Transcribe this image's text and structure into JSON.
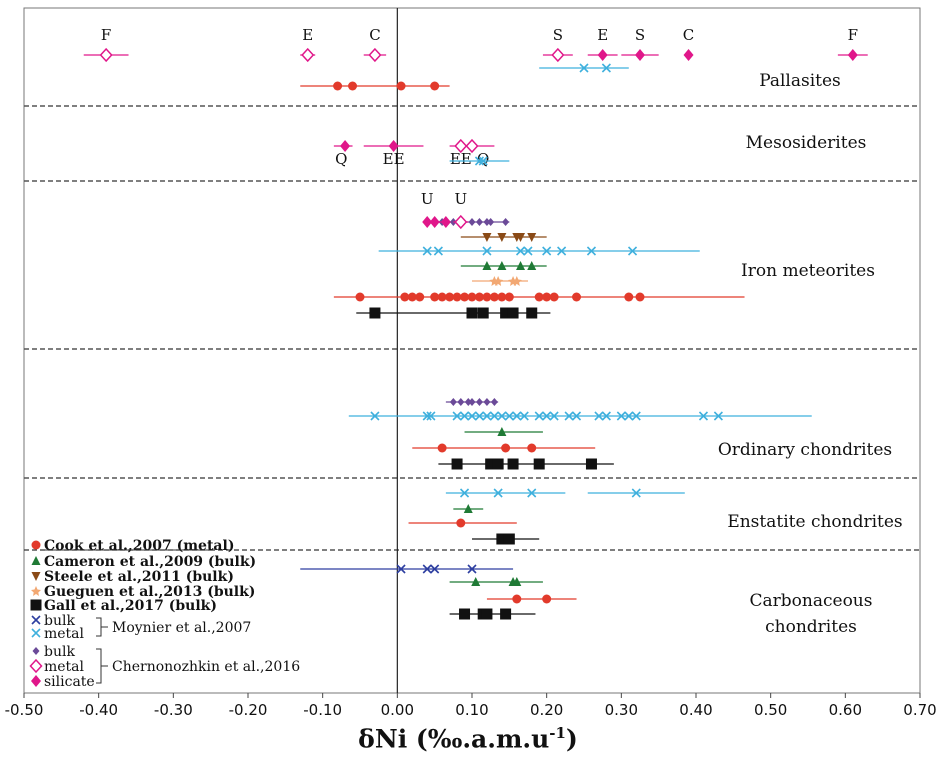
{
  "chart_data": {
    "type": "scatter",
    "xlabel": "δNi (‰.a.m.u",
    "xlabel_sup": "-1",
    "xlabel_end": ")",
    "xlim": [
      -0.5,
      0.7
    ],
    "xticks": [
      "-0.50",
      "-0.40",
      "-0.30",
      "-0.20",
      "-0.10",
      "0.00",
      "0.10",
      "0.20",
      "0.30",
      "0.40",
      "0.50",
      "0.60",
      "0.70"
    ],
    "grid": false,
    "sections": [
      {
        "label": "Pallasites"
      },
      {
        "label": "Mesosiderites"
      },
      {
        "label": "Iron meteorites"
      },
      {
        "label": "Ordinary chondrites"
      },
      {
        "label": "Enstatite chondrites"
      },
      {
        "label": "Carbonaceous",
        "label2": "chondrites"
      }
    ],
    "point_labels": [
      {
        "text": "F",
        "x": -0.39,
        "row": 1
      },
      {
        "text": "E",
        "x": -0.12,
        "row": 1
      },
      {
        "text": "C",
        "x": -0.03,
        "row": 1
      },
      {
        "text": "S",
        "x": 0.215,
        "row": 1
      },
      {
        "text": "E",
        "x": 0.275,
        "row": 1
      },
      {
        "text": "S",
        "x": 0.325,
        "row": 1
      },
      {
        "text": "C",
        "x": 0.39,
        "row": 1
      },
      {
        "text": "F",
        "x": 0.61,
        "row": 1
      },
      {
        "text": "Q",
        "x": -0.075,
        "row": 2
      },
      {
        "text": "EE",
        "x": -0.005,
        "row": 2
      },
      {
        "text": "EE",
        "x": 0.085,
        "row": 2
      },
      {
        "text": "Q",
        "x": 0.115,
        "row": 2
      },
      {
        "text": "U",
        "x": 0.04,
        "row": 3
      },
      {
        "text": "U",
        "x": 0.085,
        "row": 3
      }
    ],
    "series": [
      {
        "name": "Cook et al.,2007 (metal)",
        "marker": "circle",
        "color": "#e23a2b",
        "rows": [
          {
            "y": "pal",
            "xmin": -0.13,
            "xmax": 0.07,
            "x": [
              -0.08,
              -0.06,
              0.005,
              0.05
            ]
          },
          {
            "y": "iron",
            "xmin": -0.085,
            "xmax": 0.465,
            "x": [
              -0.05,
              0.01,
              0.02,
              0.03,
              0.05,
              0.06,
              0.07,
              0.08,
              0.09,
              0.1,
              0.11,
              0.12,
              0.13,
              0.14,
              0.15,
              0.19,
              0.2,
              0.21,
              0.24,
              0.31,
              0.325
            ]
          },
          {
            "y": "oc",
            "xmin": 0.02,
            "xmax": 0.265,
            "x": [
              0.06,
              0.145,
              0.18
            ]
          },
          {
            "y": "ec",
            "xmin": 0.015,
            "xmax": 0.16,
            "x": [
              0.085
            ]
          },
          {
            "y": "cc",
            "xmin": 0.12,
            "xmax": 0.24,
            "x": [
              0.16,
              0.2
            ]
          }
        ]
      },
      {
        "name": "Cameron et al.,2009 (bulk)",
        "marker": "triangle",
        "color": "#1f7a35",
        "rows": [
          {
            "y": "iron",
            "xmin": 0.085,
            "xmax": 0.2,
            "x": [
              0.12,
              0.14,
              0.165,
              0.18
            ]
          },
          {
            "y": "oc",
            "xmin": 0.09,
            "xmax": 0.195,
            "x": [
              0.14
            ]
          },
          {
            "y": "ec",
            "xmin": 0.075,
            "xmax": 0.115,
            "x": [
              0.095
            ]
          },
          {
            "y": "cc",
            "xmin": 0.07,
            "xmax": 0.195,
            "x": [
              0.105,
              0.155,
              0.16
            ]
          }
        ]
      },
      {
        "name": "Steele et al.,2011 (bulk)",
        "marker": "triangle-down",
        "color": "#8a4a16",
        "rows": [
          {
            "y": "iron",
            "xmin": 0.085,
            "xmax": 0.2,
            "x": [
              0.12,
              0.14,
              0.16,
              0.165,
              0.18
            ]
          }
        ]
      },
      {
        "name": "Gueguen et al.,2013 (bulk)",
        "marker": "star",
        "color": "#f2a873",
        "rows": [
          {
            "y": "iron",
            "xmin": 0.1,
            "xmax": 0.175,
            "x": [
              0.13,
              0.135,
              0.155,
              0.16
            ]
          }
        ]
      },
      {
        "name": "Gall et al.,2017 (bulk)",
        "marker": "square",
        "color": "#111111",
        "rows": [
          {
            "y": "iron",
            "xmin": -0.055,
            "xmax": 0.205,
            "x": [
              -0.03,
              0.1,
              0.115,
              0.145,
              0.155,
              0.18
            ]
          },
          {
            "y": "oc",
            "xmin": 0.055,
            "xmax": 0.29,
            "x": [
              0.08,
              0.125,
              0.135,
              0.155,
              0.19,
              0.26
            ]
          },
          {
            "y": "ec",
            "xmin": 0.1,
            "xmax": 0.19,
            "x": [
              0.14,
              0.15
            ]
          },
          {
            "y": "cc",
            "xmin": 0.07,
            "xmax": 0.185,
            "x": [
              0.09,
              0.115,
              0.12,
              0.145
            ]
          }
        ]
      },
      {
        "name": "bulk",
        "group": "Moynier et al.,2007",
        "marker": "x",
        "color": "#2d3ea0",
        "rows": [
          {
            "y": "cc",
            "xmin": -0.13,
            "xmax": 0.155,
            "x": [
              0.005,
              0.04,
              0.05,
              0.1
            ]
          }
        ]
      },
      {
        "name": "metal",
        "group": "Moynier et al.,2007",
        "marker": "x",
        "color": "#3fb0dd",
        "rows": [
          {
            "y": "pal",
            "xmin": 0.19,
            "xmax": 0.31,
            "x": [
              0.25,
              0.28
            ]
          },
          {
            "y": "meso",
            "xmin": 0.07,
            "xmax": 0.15,
            "x": [
              0.11,
              0.115
            ]
          },
          {
            "y": "iron",
            "xmin": -0.025,
            "xmax": 0.405,
            "x": [
              0.04,
              0.055,
              0.12,
              0.165,
              0.175,
              0.2,
              0.22,
              0.26,
              0.315
            ]
          },
          {
            "y": "oc",
            "xmin": -0.065,
            "xmax": 0.555,
            "x": [
              -0.03,
              0.04,
              0.045,
              0.08,
              0.09,
              0.1,
              0.11,
              0.12,
              0.13,
              0.14,
              0.15,
              0.16,
              0.17,
              0.19,
              0.2,
              0.21,
              0.23,
              0.24,
              0.27,
              0.28,
              0.3,
              0.31,
              0.32,
              0.41,
              0.43
            ]
          },
          {
            "y": "ec",
            "xmin": 0.065,
            "xmax": 0.225,
            "x": [
              0.09,
              0.135,
              0.18
            ]
          },
          {
            "y": "ec",
            "xmin": 0.255,
            "xmax": 0.385,
            "x": [
              0.32
            ]
          }
        ]
      },
      {
        "name": "bulk",
        "group": "Chernonozhkin et al.,2016",
        "marker": "diamond-small",
        "color": "#6b4a98",
        "rows": [
          {
            "y": "iron_top",
            "xmin": 0.05,
            "xmax": 0.15,
            "x": [
              0.06,
              0.075,
              0.1,
              0.11,
              0.12,
              0.125,
              0.145
            ]
          },
          {
            "y": "oc_top",
            "xmin": 0.065,
            "xmax": 0.135,
            "x": [
              0.075,
              0.085,
              0.095,
              0.1,
              0.11,
              0.12,
              0.13
            ]
          }
        ]
      },
      {
        "name": "metal",
        "group": "Chernonozhkin et al.,2016",
        "marker": "diamond-open",
        "color": "#e0178a",
        "rows": [
          {
            "y": "pal_top",
            "xmin": -0.42,
            "xmax": -0.36,
            "x": [
              -0.39
            ]
          },
          {
            "y": "pal_top",
            "xmin": -0.13,
            "xmax": -0.11,
            "x": [
              -0.12
            ]
          },
          {
            "y": "pal_top",
            "xmin": -0.045,
            "xmax": -0.015,
            "x": [
              -0.03
            ]
          },
          {
            "y": "pal_top",
            "xmin": 0.195,
            "xmax": 0.235,
            "x": [
              0.215
            ]
          },
          {
            "y": "meso_top",
            "xmin": 0.07,
            "xmax": 0.13,
            "x": [
              0.085,
              0.1
            ]
          },
          {
            "y": "iron_top",
            "xmin": 0.075,
            "xmax": 0.095,
            "x": [
              0.085
            ]
          }
        ]
      },
      {
        "name": "silicate",
        "group": "Chernonozhkin et al.,2016",
        "marker": "diamond",
        "color": "#e0178a",
        "rows": [
          {
            "y": "pal_top",
            "xmin": 0.255,
            "xmax": 0.295,
            "x": [
              0.275
            ]
          },
          {
            "y": "pal_top",
            "xmin": 0.3,
            "xmax": 0.35,
            "x": [
              0.325
            ]
          },
          {
            "y": "pal_top",
            "xmin": 0.39,
            "xmax": 0.39,
            "x": [
              0.39
            ]
          },
          {
            "y": "pal_top",
            "xmin": 0.59,
            "xmax": 0.63,
            "x": [
              0.61
            ]
          },
          {
            "y": "meso_top",
            "xmin": -0.085,
            "xmax": -0.06,
            "x": [
              -0.07
            ]
          },
          {
            "y": "meso_top",
            "xmin": -0.045,
            "xmax": 0.035,
            "x": [
              -0.005
            ]
          },
          {
            "y": "iron_top",
            "xmin": 0.035,
            "xmax": 0.06,
            "x": [
              0.04,
              0.05,
              0.065
            ]
          }
        ]
      }
    ],
    "legend_placement": "bottom-left"
  }
}
